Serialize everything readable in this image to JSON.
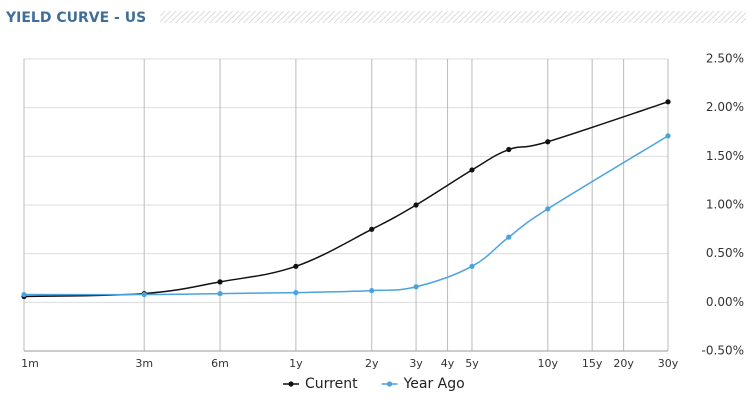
{
  "chart_data": {
    "type": "line",
    "title": "YIELD CURVE - US",
    "x": [
      1,
      3,
      6,
      12,
      24,
      36,
      60,
      84,
      120,
      360
    ],
    "xlim": [
      1,
      360
    ],
    "xscale": "log",
    "xticks": [
      {
        "value": 1,
        "label": "1m"
      },
      {
        "value": 3,
        "label": "3m"
      },
      {
        "value": 6,
        "label": "6m"
      },
      {
        "value": 12,
        "label": "1y"
      },
      {
        "value": 24,
        "label": "2y"
      },
      {
        "value": 36,
        "label": "3y"
      },
      {
        "value": 48,
        "label": "4y"
      },
      {
        "value": 60,
        "label": "5y"
      },
      {
        "value": 120,
        "label": "10y"
      },
      {
        "value": 180,
        "label": "15y"
      },
      {
        "value": 240,
        "label": "20y"
      },
      {
        "value": 360,
        "label": "30y"
      }
    ],
    "ylim": [
      -0.5,
      2.5
    ],
    "yticks": [
      {
        "value": 2.5,
        "label": "2.50%"
      },
      {
        "value": 2.0,
        "label": "2.00%"
      },
      {
        "value": 1.5,
        "label": "1.50%"
      },
      {
        "value": 1.0,
        "label": "1.00%"
      },
      {
        "value": 0.5,
        "label": "0.50%"
      },
      {
        "value": 0,
        "label": "0.00%"
      },
      {
        "value": -0.5,
        "label": "-0.50%"
      }
    ],
    "grid": true,
    "legend": "bottom",
    "series": [
      {
        "name": "Current",
        "color": "#111111",
        "values": [
          0.06,
          0.09,
          0.21,
          0.37,
          0.75,
          1.0,
          1.36,
          1.57,
          1.65,
          2.06
        ]
      },
      {
        "name": "Year Ago",
        "color": "#4aa3df",
        "values": [
          0.08,
          0.08,
          0.09,
          0.1,
          0.12,
          0.16,
          0.37,
          0.67,
          0.96,
          1.71
        ]
      }
    ]
  }
}
